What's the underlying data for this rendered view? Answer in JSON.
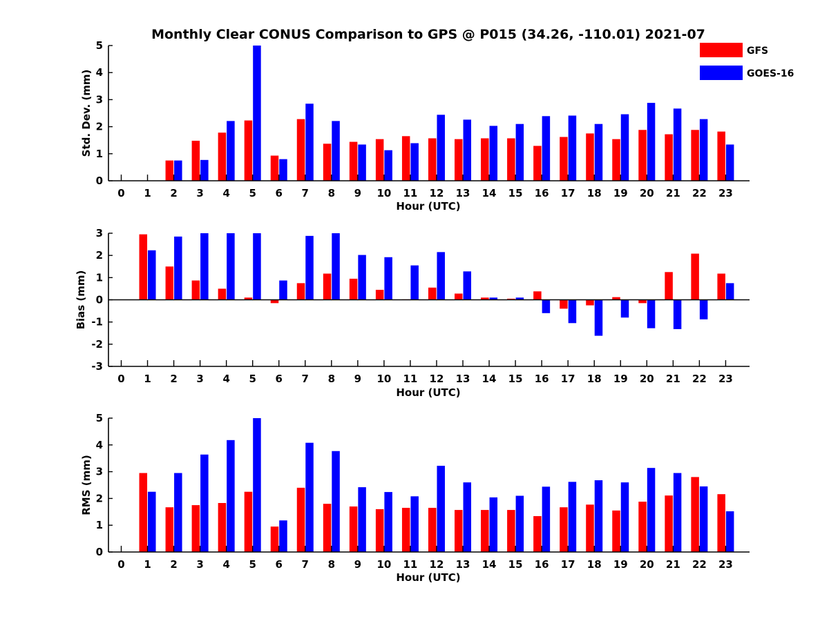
{
  "figure": {
    "title": "Monthly Clear CONUS Comparison to GPS @ P015 (34.26, -110.01) 2021-07",
    "legend": [
      {
        "label": "GFS",
        "color": "#ff0000"
      },
      {
        "label": "GOES-16",
        "color": "#0000ff"
      }
    ],
    "legend_placement": "top-right"
  },
  "chart_data": [
    {
      "type": "bar",
      "title": "",
      "xlabel": "Hour (UTC)",
      "ylabel": "Std. Dev. (mm)",
      "ylim": [
        0,
        5
      ],
      "yticks": [
        0,
        1,
        2,
        3,
        4,
        5
      ],
      "categories": [
        "0",
        "1",
        "2",
        "3",
        "4",
        "5",
        "6",
        "7",
        "8",
        "9",
        "10",
        "11",
        "12",
        "13",
        "14",
        "15",
        "16",
        "17",
        "18",
        "19",
        "20",
        "21",
        "22",
        "23"
      ],
      "series": [
        {
          "name": "GFS",
          "color": "#ff0000",
          "values": [
            null,
            null,
            0.75,
            1.48,
            1.78,
            2.23,
            0.93,
            2.28,
            1.37,
            1.44,
            1.54,
            1.65,
            1.57,
            1.54,
            1.57,
            1.57,
            1.29,
            1.62,
            1.75,
            1.54,
            1.88,
            1.72,
            1.88,
            1.82
          ]
        },
        {
          "name": "GOES-16",
          "color": "#0000ff",
          "values": [
            null,
            null,
            0.75,
            0.77,
            2.21,
            5.0,
            0.8,
            2.85,
            2.21,
            1.34,
            1.13,
            1.39,
            2.44,
            2.26,
            2.03,
            2.1,
            2.39,
            2.41,
            2.1,
            2.46,
            2.88,
            2.67,
            2.28,
            1.34
          ]
        }
      ]
    },
    {
      "type": "bar",
      "title": "",
      "xlabel": "Hour (UTC)",
      "ylabel": "Bias (mm)",
      "ylim": [
        -3,
        3
      ],
      "yticks": [
        -3,
        -2,
        -1,
        0,
        1,
        2,
        3
      ],
      "categories": [
        "0",
        "1",
        "2",
        "3",
        "4",
        "5",
        "6",
        "7",
        "8",
        "9",
        "10",
        "11",
        "12",
        "13",
        "14",
        "15",
        "16",
        "17",
        "18",
        "19",
        "20",
        "21",
        "22",
        "23"
      ],
      "series": [
        {
          "name": "GFS",
          "color": "#ff0000",
          "values": [
            null,
            2.95,
            1.5,
            0.87,
            0.5,
            0.1,
            -0.15,
            0.75,
            1.18,
            0.95,
            0.45,
            0.02,
            0.55,
            0.28,
            0.1,
            0.05,
            0.38,
            -0.4,
            -0.25,
            0.12,
            -0.15,
            1.25,
            2.08,
            1.18
          ]
        },
        {
          "name": "GOES-16",
          "color": "#0000ff",
          "values": [
            null,
            2.23,
            2.85,
            3.0,
            3.0,
            3.0,
            0.87,
            2.88,
            3.0,
            2.02,
            1.92,
            1.55,
            2.15,
            1.28,
            0.1,
            0.1,
            -0.6,
            -1.05,
            -1.62,
            -0.8,
            -1.28,
            -1.32,
            -0.88,
            0.75
          ]
        }
      ]
    },
    {
      "type": "bar",
      "title": "",
      "xlabel": "Hour (UTC)",
      "ylabel": "RMS (mm)",
      "ylim": [
        0,
        5
      ],
      "yticks": [
        0,
        1,
        2,
        3,
        4,
        5
      ],
      "categories": [
        "0",
        "1",
        "2",
        "3",
        "4",
        "5",
        "6",
        "7",
        "8",
        "9",
        "10",
        "11",
        "12",
        "13",
        "14",
        "15",
        "16",
        "17",
        "18",
        "19",
        "20",
        "21",
        "22",
        "23"
      ],
      "series": [
        {
          "name": "GFS",
          "color": "#ff0000",
          "values": [
            null,
            2.95,
            1.67,
            1.75,
            1.83,
            2.25,
            0.95,
            2.4,
            1.8,
            1.7,
            1.6,
            1.65,
            1.65,
            1.57,
            1.57,
            1.57,
            1.34,
            1.67,
            1.77,
            1.55,
            1.88,
            2.11,
            2.8,
            2.16
          ]
        },
        {
          "name": "GOES-16",
          "color": "#0000ff",
          "values": [
            null,
            2.25,
            2.95,
            3.64,
            4.18,
            5.0,
            1.18,
            4.08,
            3.77,
            2.42,
            2.24,
            2.08,
            3.22,
            2.6,
            2.04,
            2.1,
            2.44,
            2.62,
            2.68,
            2.6,
            3.14,
            2.95,
            2.45,
            1.52
          ]
        }
      ]
    }
  ]
}
